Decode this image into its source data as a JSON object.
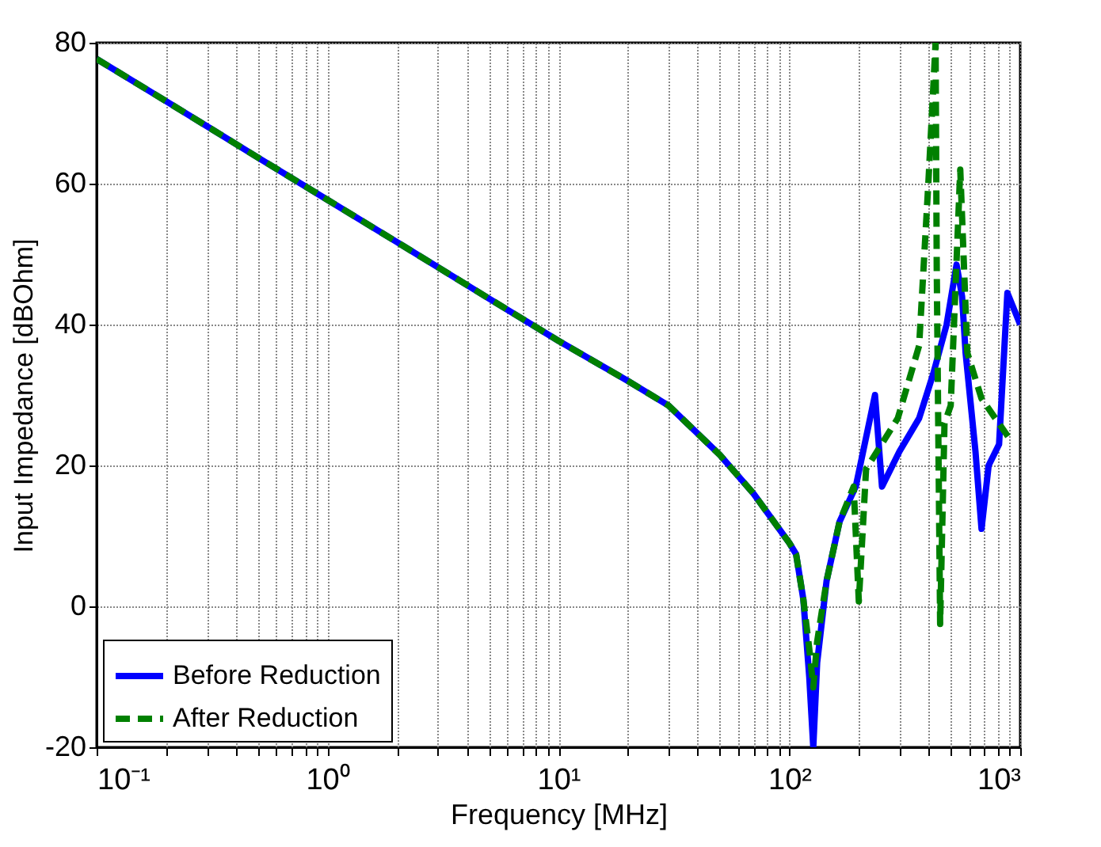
{
  "chart_data": {
    "type": "line",
    "xlabel": "Frequency [MHz]",
    "ylabel": "Input Impedance [dBOhm]",
    "log": "x",
    "grid": true,
    "legend": "bottom left",
    "xlim": [
      0.1,
      1000
    ],
    "ylim": [
      -20,
      80
    ],
    "xticks": [
      {
        "value": 0.1,
        "label": "10⁻¹"
      },
      {
        "value": 0.2,
        "label": null
      },
      {
        "value": 0.3,
        "label": null
      },
      {
        "value": 0.4,
        "label": null
      },
      {
        "value": 0.5,
        "label": null
      },
      {
        "value": 0.6,
        "label": null
      },
      {
        "value": 0.7,
        "label": null
      },
      {
        "value": 0.8,
        "label": null
      },
      {
        "value": 0.9,
        "label": null
      },
      {
        "value": 1,
        "label": "10⁰"
      },
      {
        "value": 2,
        "label": null
      },
      {
        "value": 3,
        "label": null
      },
      {
        "value": 4,
        "label": null
      },
      {
        "value": 5,
        "label": null
      },
      {
        "value": 6,
        "label": null
      },
      {
        "value": 7,
        "label": null
      },
      {
        "value": 8,
        "label": null
      },
      {
        "value": 9,
        "label": null
      },
      {
        "value": 10,
        "label": "10¹"
      },
      {
        "value": 20,
        "label": null
      },
      {
        "value": 30,
        "label": null
      },
      {
        "value": 40,
        "label": null
      },
      {
        "value": 50,
        "label": null
      },
      {
        "value": 60,
        "label": null
      },
      {
        "value": 70,
        "label": null
      },
      {
        "value": 80,
        "label": null
      },
      {
        "value": 90,
        "label": null
      },
      {
        "value": 100,
        "label": "10²"
      },
      {
        "value": 200,
        "label": null
      },
      {
        "value": 300,
        "label": null
      },
      {
        "value": 400,
        "label": null
      },
      {
        "value": 500,
        "label": null
      },
      {
        "value": 600,
        "label": null
      },
      {
        "value": 700,
        "label": null
      },
      {
        "value": 800,
        "label": null
      },
      {
        "value": 900,
        "label": null
      },
      {
        "value": 1000,
        "label": "10³"
      }
    ],
    "yticks": [
      -20,
      0,
      20,
      40,
      60,
      80
    ],
    "series": [
      {
        "name": "Before Reduction",
        "color": "#0000ff",
        "line_style": "solid",
        "x": [
          0.1,
          0.2,
          0.5,
          1,
          2,
          5,
          10,
          20,
          30,
          50,
          70,
          100,
          107,
          115,
          122,
          127,
          132,
          145,
          165,
          194,
          235,
          252,
          300,
          365,
          420,
          480,
          530,
          560,
          580,
          640,
          680,
          730,
          810,
          880,
          1000
        ],
        "values": [
          77.7,
          71.7,
          63.7,
          57.7,
          51.7,
          43.7,
          37.7,
          32,
          28.5,
          21.5,
          16,
          9,
          7.4,
          1,
          -10,
          -20,
          -8,
          3.6,
          12,
          17,
          30,
          17,
          22,
          26.7,
          33,
          40,
          48.5,
          44,
          36,
          22,
          11,
          20,
          23,
          44.5,
          40
        ]
      },
      {
        "name": "After Reduction",
        "color": "#008000",
        "line_style": "dashed",
        "x": [
          0.1,
          0.2,
          0.5,
          1,
          2,
          5,
          10,
          20,
          30,
          50,
          70,
          100,
          107,
          115,
          122,
          127,
          132,
          145,
          165,
          190,
          200,
          215,
          295,
          365,
          400,
          430,
          435,
          450,
          470,
          500,
          550,
          590,
          680,
          890
        ],
        "values": [
          77.7,
          71.7,
          63.7,
          57.7,
          51.7,
          43.7,
          37.7,
          32,
          28.5,
          21.5,
          16,
          9,
          7.4,
          1,
          -6,
          -11.5,
          -5,
          3.6,
          12,
          17,
          0.7,
          19.5,
          26.7,
          37,
          60,
          80,
          48,
          -2.5,
          26,
          28.5,
          62,
          36,
          29.5,
          24
        ]
      }
    ]
  }
}
